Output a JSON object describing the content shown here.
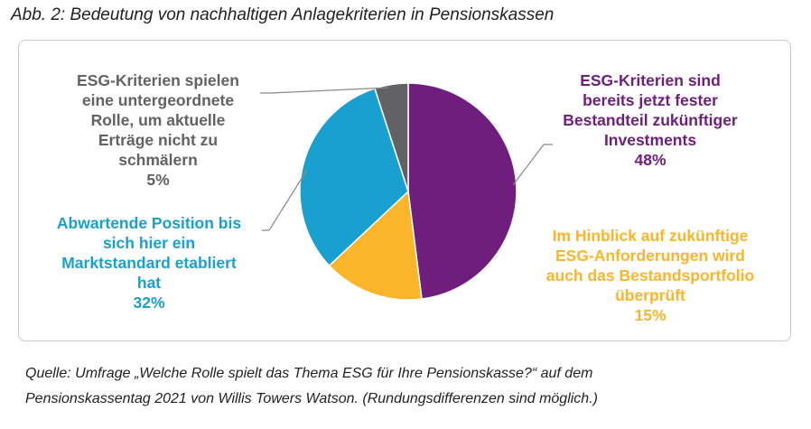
{
  "figure": {
    "title": "Abb. 2: Bedeutung von nachhaltigen Anlagekriterien in Pensionskassen",
    "source_line1": "Quelle: Umfrage „Welche Rolle spielt das Thema ESG für Ihre Pensionskasse?“ auf dem",
    "source_line2": "Pensionskassentag 2021 von Willis Towers Watson. (Rundungsdifferenzen sind möglich.)"
  },
  "chart_data": {
    "type": "pie",
    "title": "Abb. 2: Bedeutung von nachhaltigen Anlagekriterien in Pensionskassen",
    "slices": [
      {
        "label_lines": [
          "ESG-Kriterien sind",
          "bereits jetzt fester",
          "Bestandteil zukünftiger",
          "Investments"
        ],
        "value": 48,
        "percent_label": "48%",
        "color": "#6f1e7e"
      },
      {
        "label_lines": [
          "Im Hinblick auf zukünftige",
          "ESG-Anforderungen wird",
          "auch das Bestandsportfolio",
          "überprüft"
        ],
        "value": 15,
        "percent_label": "15%",
        "color": "#fbb52a"
      },
      {
        "label_lines": [
          "Abwartende Position bis",
          "sich hier ein",
          "Marktstandard etabliert",
          "hat"
        ],
        "value": 32,
        "percent_label": "32%",
        "color": "#1a9fd1"
      },
      {
        "label_lines": [
          "ESG-Kriterien spielen",
          "eine untergeordnete",
          "Rolle, um aktuelle",
          "Erträge nicht zu",
          "schmälern"
        ],
        "value": 5,
        "percent_label": "5%",
        "color": "#626264"
      }
    ],
    "start_angle": "top",
    "direction": "clockwise",
    "legend": "none",
    "leader_line_color": "#8a8a8a"
  }
}
